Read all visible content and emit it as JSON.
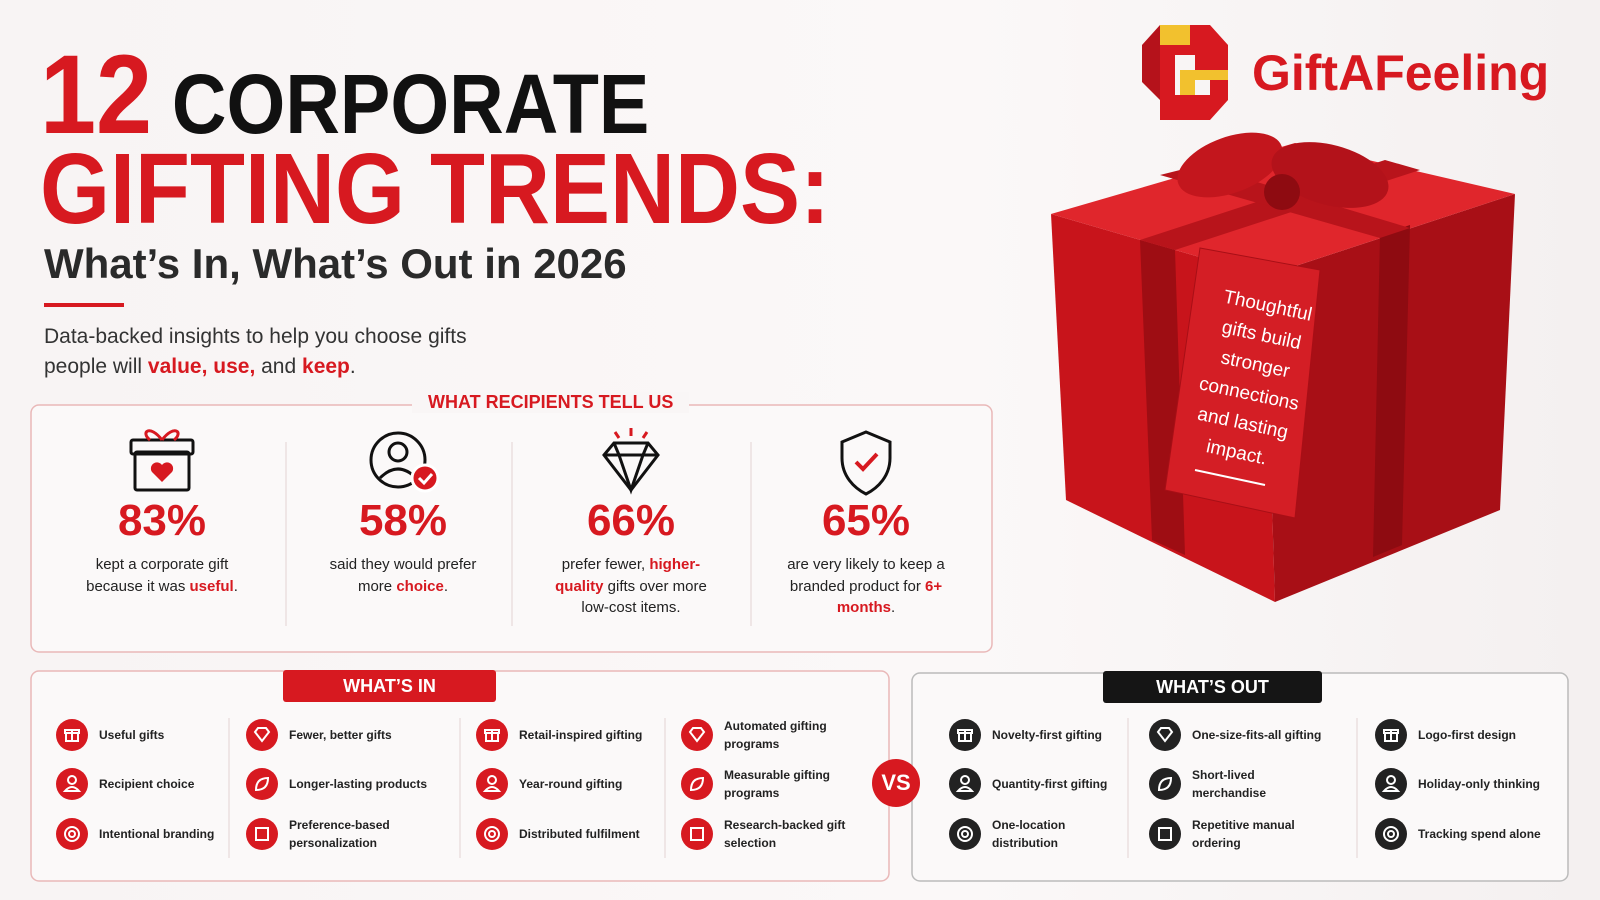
{
  "brand": {
    "name": "GiftAFeeling"
  },
  "header": {
    "title_parts": [
      {
        "text": "12",
        "color": "#d71920"
      },
      {
        "text": "CORPORATE",
        "color": "#111111"
      }
    ],
    "title_line2": "GIFTING TRENDS:",
    "subtitle": "What’s In, What’s Out in 2026",
    "intro": [
      {
        "text": "Data-backed insights to help you choose gifts people will "
      },
      {
        "text": "value, use,",
        "emphasis": true
      },
      {
        "text": " and "
      },
      {
        "text": "keep",
        "emphasis": true
      },
      {
        "text": "."
      }
    ]
  },
  "gift_tag": "Thoughtful gifts build stronger connections and lasting impact.",
  "stats": {
    "heading": "WHAT RECIPIENTS TELL US",
    "items": [
      {
        "value": "83%",
        "description": [
          {
            "text": "kept a corporate gift because it was "
          },
          {
            "text": "useful",
            "emphasis": true
          },
          {
            "text": "."
          }
        ]
      },
      {
        "value": "58%",
        "description": [
          {
            "text": "said they would prefer more "
          },
          {
            "text": "choice",
            "emphasis": true
          },
          {
            "text": "."
          }
        ]
      },
      {
        "value": "66%",
        "description": [
          {
            "text": "prefer fewer, "
          },
          {
            "text": "higher-quality",
            "emphasis": true
          },
          {
            "text": " gifts over more low-cost items."
          }
        ]
      },
      {
        "value": "65%",
        "description": [
          {
            "text": "are very likely to keep a branded product for "
          },
          {
            "text": "6+ months",
            "emphasis": true
          },
          {
            "text": "."
          }
        ]
      }
    ]
  },
  "whats_in": {
    "heading": "WHAT’S IN",
    "items": [
      "Useful gifts",
      "Recipient choice",
      "Intentional branding",
      "Fewer, better gifts",
      "Longer-lasting products",
      "Preference-based personalization",
      "Retail-inspired gifting",
      "Year-round gifting",
      "Distributed fulfilment",
      "Automated gifting programs",
      "Measurable gifting programs",
      "Research-backed gift selection"
    ]
  },
  "vs": "VS",
  "whats_out": {
    "heading": "WHAT’S OUT",
    "items": [
      "Novelty-first gifting",
      "Quantity-first gifting",
      "One-location distribution",
      "One-size-fits-all gifting",
      "Short-lived merchandise",
      "Repetitive manual ordering",
      "Logo-first design",
      "Holiday-only thinking",
      "Tracking spend alone"
    ]
  }
}
